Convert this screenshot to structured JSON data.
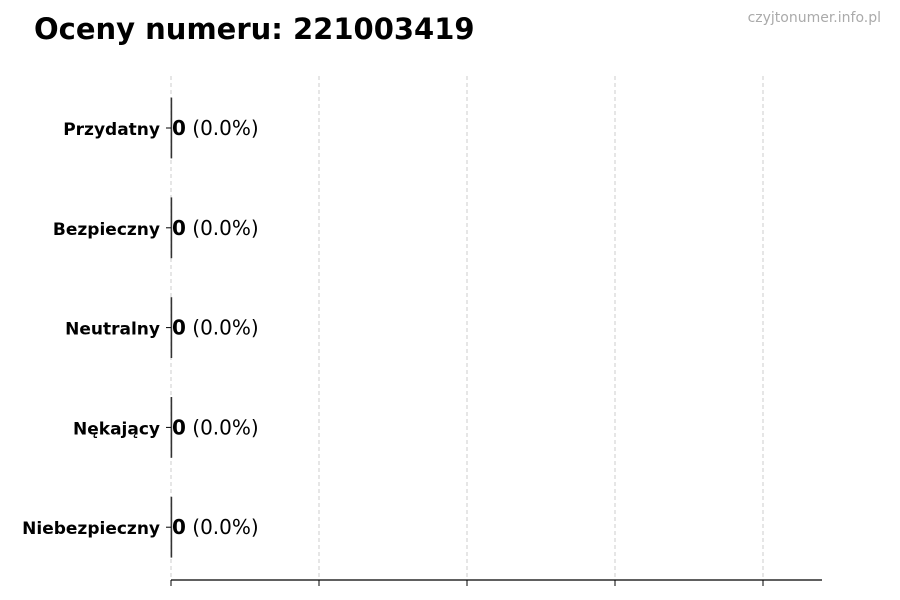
{
  "title": "Oceny numeru: 221003419",
  "watermark": "czyjtonumer.info.pl",
  "chart_data": {
    "type": "bar",
    "orientation": "horizontal",
    "title": "Oceny numeru: 221003419",
    "categories": [
      "Przydatny",
      "Bezpieczny",
      "Neutralny",
      "Nękający",
      "Niebezpieczny"
    ],
    "values": [
      0,
      0,
      0,
      0,
      0
    ],
    "data_labels": [
      {
        "count": "0",
        "percent": "(0.0%)"
      },
      {
        "count": "0",
        "percent": "(0.0%)"
      },
      {
        "count": "0",
        "percent": "(0.0%)"
      },
      {
        "count": "0",
        "percent": "(0.0%)"
      },
      {
        "count": "0",
        "percent": "(0.0%)"
      }
    ],
    "xlabel": "",
    "ylabel": "",
    "x_tick_labels_shown": false,
    "grid": "vertical dashed",
    "colors": {
      "bar_edge": "#333333",
      "grid": "#cccccc",
      "axis": "#000000"
    }
  }
}
